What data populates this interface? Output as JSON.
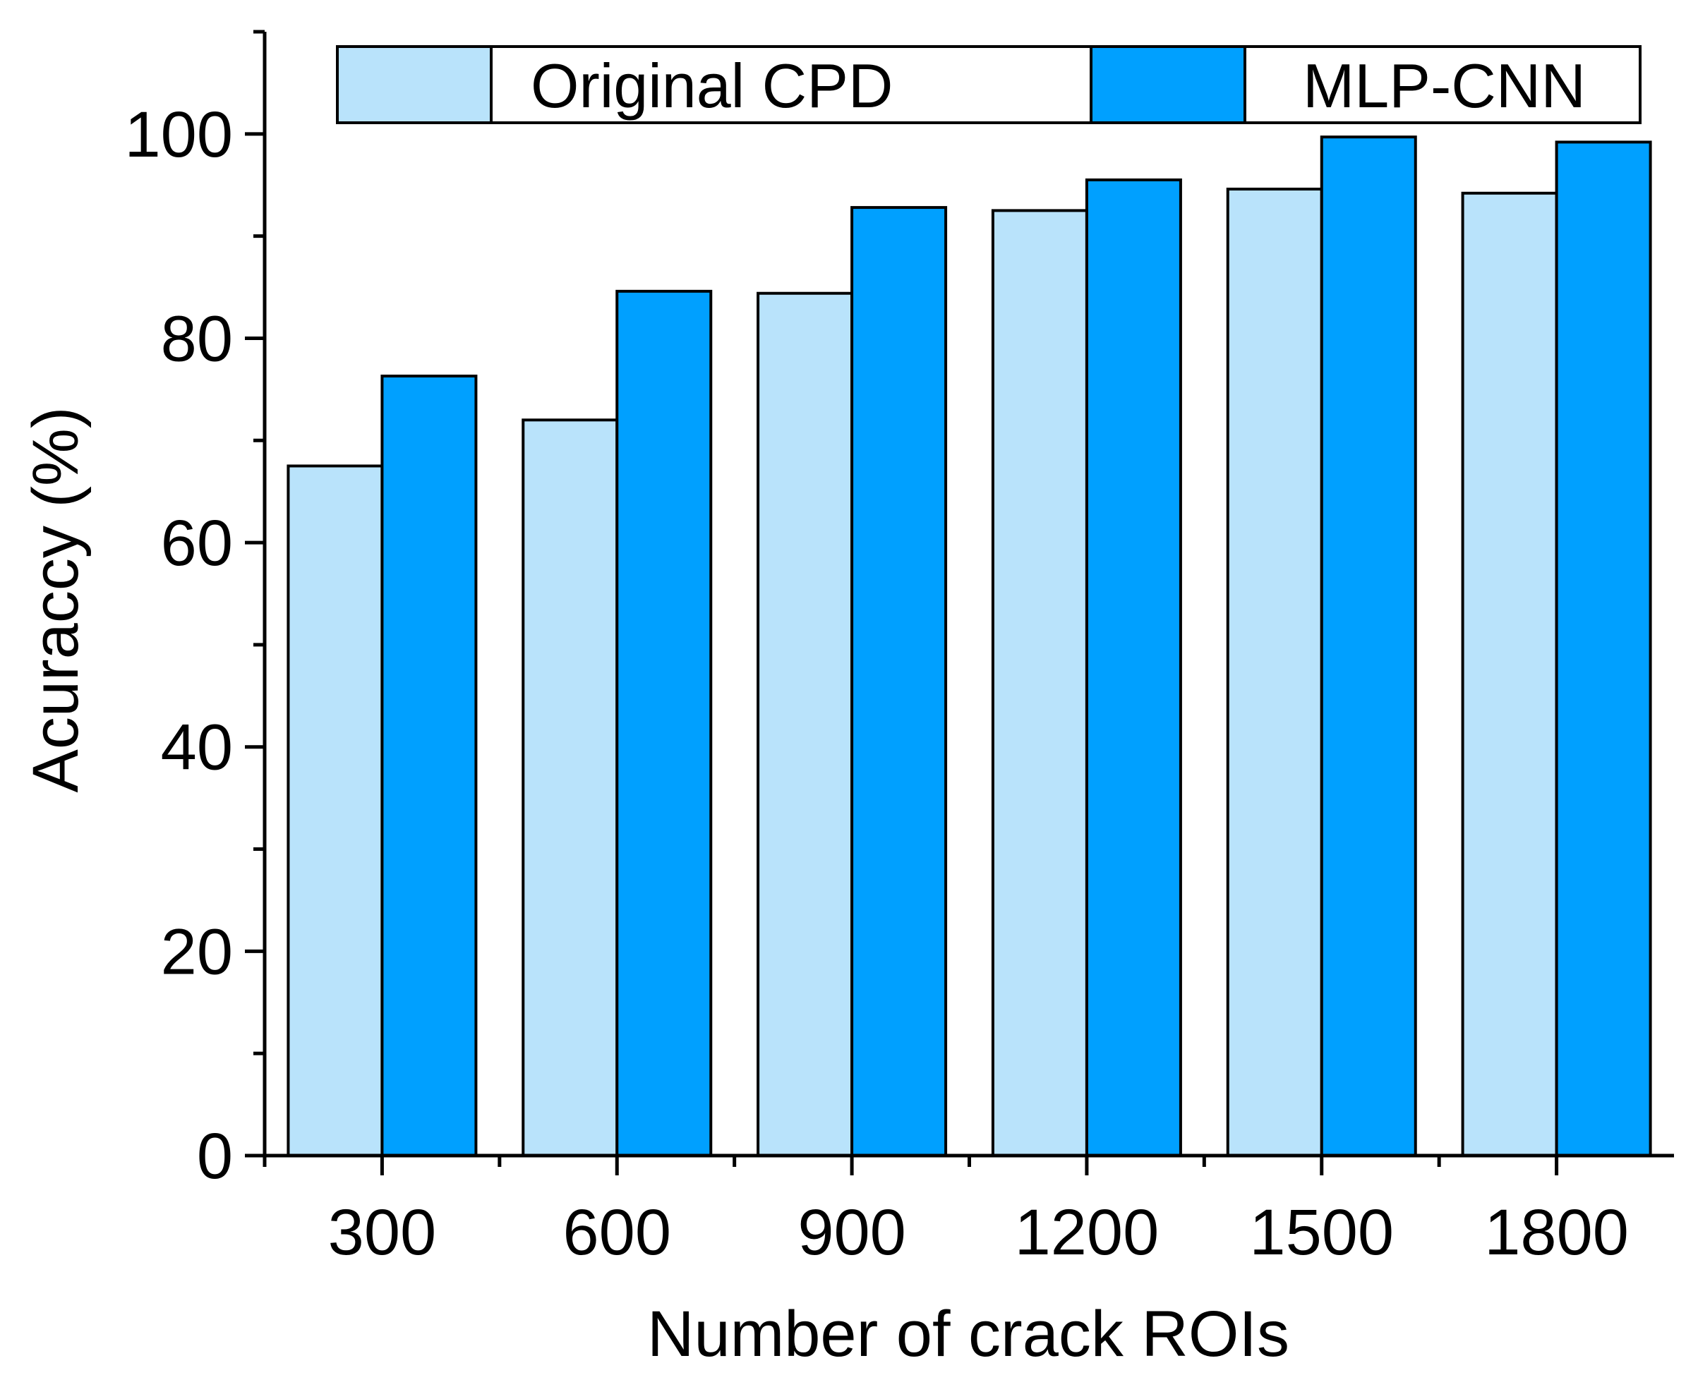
{
  "chart_data": {
    "type": "bar",
    "categories": [
      "300",
      "600",
      "900",
      "1200",
      "1500",
      "1800"
    ],
    "series": [
      {
        "name": "Original CPD",
        "values": [
          67.5,
          72.0,
          84.4,
          92.5,
          94.6,
          94.2
        ],
        "color": "#b9e3fb"
      },
      {
        "name": "MLP-CNN",
        "values": [
          76.3,
          84.6,
          92.8,
          95.5,
          99.7,
          99.2
        ],
        "color": "#00a0ff"
      }
    ],
    "xlabel": "Number of crack ROIs",
    "ylabel": "Acuraccy (%)",
    "ylim": [
      0,
      110
    ],
    "yticks": [
      0,
      20,
      40,
      60,
      80,
      100
    ],
    "y_minor_step": 10,
    "grid": false,
    "legend_position": "top"
  }
}
